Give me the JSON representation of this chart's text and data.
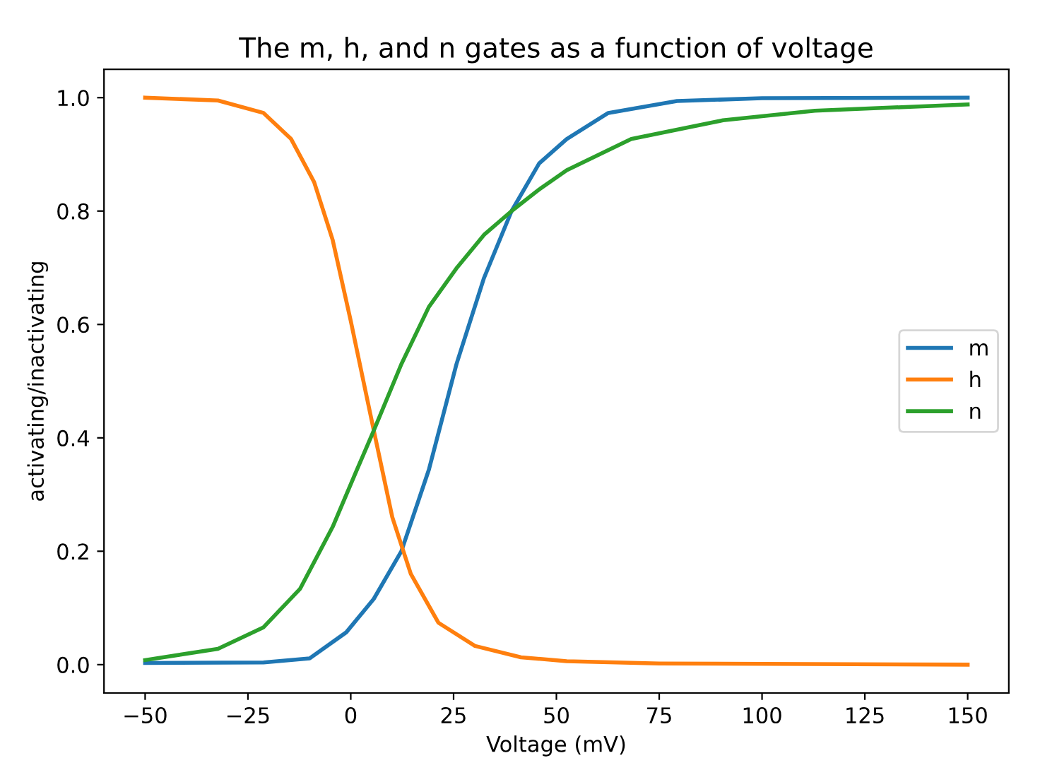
{
  "chart_data": {
    "type": "line",
    "title": "The m, h, and n gates as a function of voltage",
    "xlabel": "Voltage (mV)",
    "ylabel": "activating/inactivating",
    "xlim": [
      -60,
      160
    ],
    "xticks": [
      {
        "value": -50,
        "label": "−50"
      },
      {
        "value": -25,
        "label": "−25"
      },
      0,
      25,
      50,
      75,
      100,
      125,
      150
    ],
    "ylim": [
      -0.05,
      1.05
    ],
    "yticks": [
      {
        "value": 0,
        "label": "0.0"
      },
      0.2,
      0.4,
      0.6,
      0.8,
      {
        "value": 1,
        "label": "1.0"
      }
    ],
    "legend": "right",
    "grid": false,
    "line_style": "solid",
    "series": [
      {
        "name": "m",
        "color": "#1f77b4",
        "x": [
          -50,
          -21.2,
          -10,
          -1.1,
          5.6,
          12.3,
          19,
          25.7,
          32.4,
          39.1,
          45.8,
          52.5,
          62.6,
          79.3,
          100,
          150
        ],
        "values": [
          0.003,
          0.004,
          0.011,
          0.057,
          0.116,
          0.2,
          0.344,
          0.53,
          0.682,
          0.8,
          0.884,
          0.927,
          0.973,
          0.994,
          0.999,
          1.0
        ]
      },
      {
        "name": "h",
        "color": "#ff7f0e",
        "x": [
          -50,
          -32.3,
          -21.2,
          -14.5,
          -8.9,
          -4.4,
          0,
          5.6,
          10.1,
          14.6,
          21.3,
          30.2,
          41.4,
          52.5,
          75,
          150
        ],
        "values": [
          1.0,
          0.995,
          0.973,
          0.927,
          0.851,
          0.749,
          0.606,
          0.413,
          0.26,
          0.16,
          0.074,
          0.033,
          0.013,
          0.006,
          0.002,
          0.0
        ]
      },
      {
        "name": "n",
        "color": "#2ca02c",
        "x": [
          -50,
          -32.3,
          -21.2,
          -12.3,
          -4.4,
          1.1,
          5.6,
          12.3,
          19,
          25.7,
          32.4,
          39.1,
          45.8,
          52.5,
          68.2,
          90.5,
          112.8,
          150
        ],
        "values": [
          0.008,
          0.028,
          0.066,
          0.134,
          0.243,
          0.337,
          0.413,
          0.53,
          0.631,
          0.699,
          0.758,
          0.8,
          0.838,
          0.872,
          0.927,
          0.96,
          0.977,
          0.988
        ]
      }
    ]
  }
}
